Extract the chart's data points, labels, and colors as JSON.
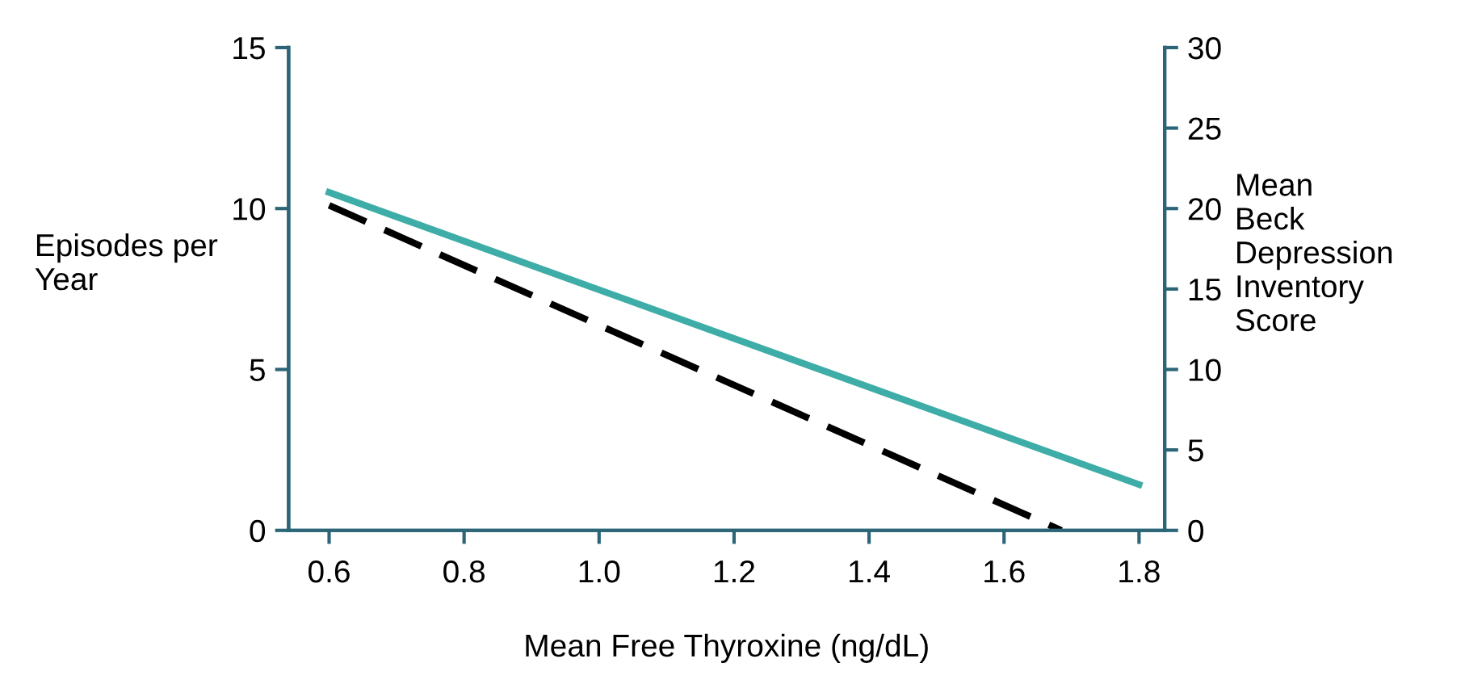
{
  "chart_data": {
    "type": "line",
    "xlabel": "Mean Free Thyroxine (ng/dL)",
    "ylabel": "Episodes per\nYear",
    "y2label": "Mean\nBeck\nDepression\nInventory\nScore",
    "xlim": [
      0.54,
      1.838
    ],
    "xticks": [
      {
        "value": 0.6,
        "label": "0.6"
      },
      {
        "value": 0.8,
        "label": "0.8"
      },
      {
        "value": 1.0,
        "label": "1.0"
      },
      {
        "value": 1.2,
        "label": "1.2"
      },
      {
        "value": 1.4,
        "label": "1.4"
      },
      {
        "value": 1.6,
        "label": "1.6"
      },
      {
        "value": 1.8,
        "label": "1.8"
      }
    ],
    "ylim": [
      0,
      15
    ],
    "yticks": [
      0,
      5,
      10,
      15
    ],
    "y2lim": [
      0,
      30
    ],
    "y2ticks": [
      0,
      5,
      10,
      15,
      20,
      25,
      30
    ],
    "series": [
      {
        "color": "#000000",
        "line_style": "dashed",
        "x": [
          0.6,
          1.685
        ],
        "values": [
          10.1,
          0
        ]
      },
      {
        "color": "#3fada7",
        "line_style": "solid",
        "axis": "y2",
        "x": [
          0.6,
          1.8
        ],
        "values": [
          21,
          2.85
        ]
      }
    ],
    "grid": false,
    "legend": false,
    "marker": "none"
  }
}
